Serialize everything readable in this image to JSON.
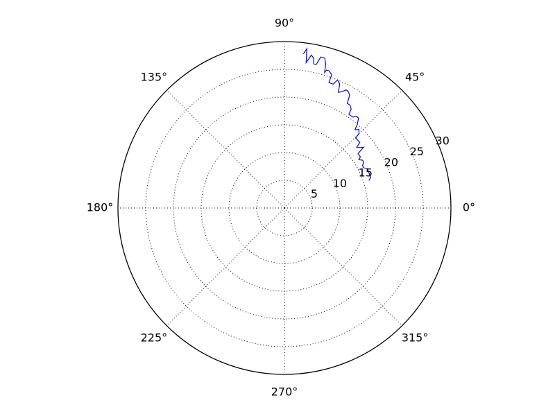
{
  "chart_data": {
    "type": "line",
    "subtype": "polar",
    "title": "",
    "theta_unit": "degrees",
    "r_range": [
      0,
      30
    ],
    "theta_tick_labels": [
      "0°",
      "45°",
      "90°",
      "135°",
      "180°",
      "225°",
      "270°",
      "315°"
    ],
    "theta_ticks": [
      0,
      45,
      90,
      135,
      180,
      225,
      270,
      315
    ],
    "r_tick_labels": [
      "5",
      "10",
      "15",
      "20",
      "25",
      "30"
    ],
    "r_ticks": [
      5,
      10,
      15,
      20,
      25,
      30
    ],
    "r_label_angle": 22.5,
    "grid": true,
    "series": [
      {
        "color": "#0000ff",
        "points": [
          [
            83.0,
            28.0
          ],
          [
            82.0,
            29.0
          ],
          [
            81.5,
            26.5
          ],
          [
            80.0,
            28.0
          ],
          [
            79.0,
            27.5
          ],
          [
            78.5,
            26.5
          ],
          [
            77.5,
            26.5
          ],
          [
            76.5,
            28.0
          ],
          [
            75.0,
            28.0
          ],
          [
            74.0,
            27.0
          ],
          [
            73.5,
            25.5
          ],
          [
            73.0,
            26.0
          ],
          [
            72.0,
            26.0
          ],
          [
            70.5,
            25.5
          ],
          [
            70.5,
            24.0
          ],
          [
            68.5,
            24.0
          ],
          [
            67.5,
            25.0
          ],
          [
            66.0,
            24.5
          ],
          [
            65.0,
            23.0
          ],
          [
            63.5,
            23.5
          ],
          [
            62.5,
            24.0
          ],
          [
            61.5,
            24.0
          ],
          [
            60.0,
            23.5
          ],
          [
            59.0,
            22.0
          ],
          [
            57.5,
            22.0
          ],
          [
            56.0,
            21.5
          ],
          [
            55.5,
            20.5
          ],
          [
            54.5,
            20.5
          ],
          [
            53.0,
            20.5
          ],
          [
            52.0,
            21.0
          ],
          [
            50.5,
            21.0
          ],
          [
            49.0,
            20.0
          ],
          [
            48.0,
            19.0
          ],
          [
            46.5,
            19.5
          ],
          [
            45.0,
            19.0
          ],
          [
            44.5,
            18.0
          ],
          [
            43.0,
            18.0
          ],
          [
            41.0,
            18.0
          ],
          [
            40.0,
            17.0
          ],
          [
            38.5,
            17.5
          ],
          [
            37.5,
            18.0
          ],
          [
            36.5,
            16.5
          ],
          [
            35.5,
            16.5
          ],
          [
            34.0,
            16.5
          ],
          [
            33.0,
            16.0
          ],
          [
            31.5,
            16.5
          ],
          [
            30.0,
            16.5
          ],
          [
            28.5,
            16.0
          ],
          [
            27.0,
            16.0
          ],
          [
            25.5,
            16.5
          ],
          [
            24.0,
            16.5
          ],
          [
            22.5,
            16.5
          ],
          [
            21.0,
            16.5
          ],
          [
            19.5,
            16.5
          ],
          [
            18.0,
            16.0
          ]
        ]
      }
    ]
  }
}
